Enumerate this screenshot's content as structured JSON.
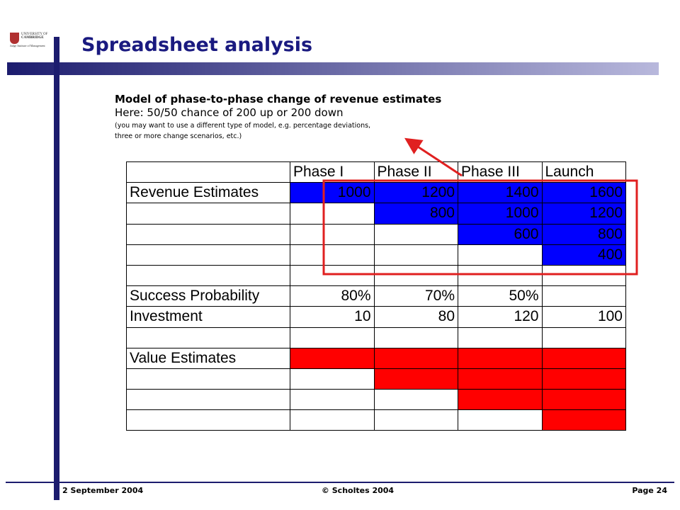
{
  "logo": {
    "lines": [
      "UNIVERSITY OF",
      "CAMBRIDGE",
      "Judge Institute of Management"
    ]
  },
  "header": {
    "title": "Spreadsheet analysis"
  },
  "intro": {
    "heading": "Model of phase-to-phase change of revenue estimates",
    "subheading": "Here: 50/50 chance of 200 up or 200 down",
    "note": [
      "(you may want to use a different type of model, e.g. percentage deviations,",
      "three or more change scenarios, etc.)"
    ]
  },
  "table": {
    "columns": [
      "Phase I",
      "Phase II",
      "Phase III",
      "Launch"
    ],
    "rows": [
      [
        "Revenue Estimates",
        1000,
        1200,
        1400,
        1600
      ],
      [
        null,
        null,
        800,
        1000,
        1200
      ],
      [
        null,
        null,
        null,
        600,
        800
      ],
      [
        null,
        null,
        null,
        null,
        400
      ],
      [
        null,
        null,
        null,
        null,
        null
      ],
      [
        "Success Probability",
        "80%",
        "70%",
        "50%",
        null
      ],
      [
        "Investment",
        10,
        80,
        120,
        100
      ],
      [
        null,
        null,
        null,
        null,
        null
      ],
      [
        "Value Estimates",
        null,
        null,
        null,
        null
      ],
      [
        null,
        null,
        null,
        null,
        null
      ],
      [
        null,
        null,
        null,
        null,
        null
      ],
      [
        null,
        null,
        null,
        null,
        null
      ]
    ]
  },
  "footer": {
    "date": "2 September 2004",
    "copyright": "© Scholtes 2004",
    "page": "Page 24"
  }
}
